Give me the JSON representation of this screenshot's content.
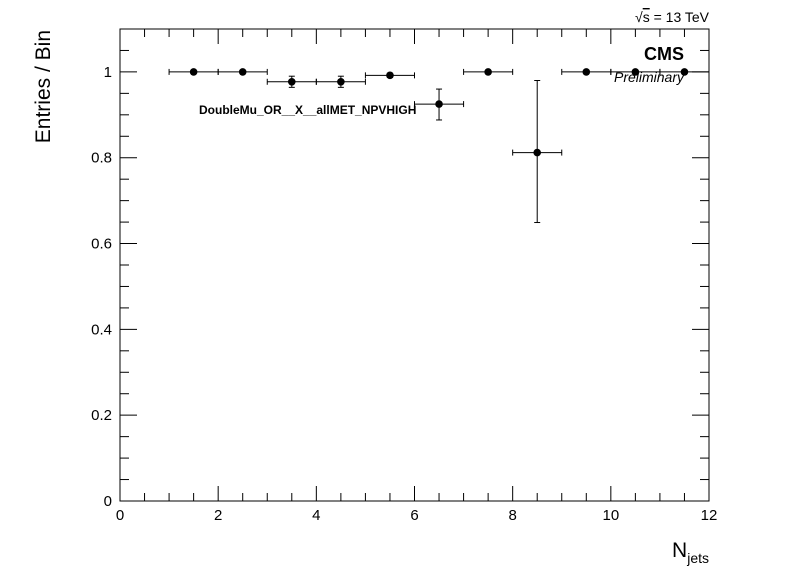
{
  "header": {
    "energy_label": "√s = 13 TeV",
    "energy_sqrt": "√",
    "energy_s": "s",
    "energy_rest": " = 13 TeV"
  },
  "labels": {
    "cms": "CMS",
    "preliminary": "Preliminary",
    "selection": "DoubleMu_OR__X__allMET_NPVHIGH"
  },
  "chart_data": {
    "type": "scatter",
    "title": "",
    "xlabel": "N_jets",
    "xlabel_main": "N",
    "xlabel_sub": "jets",
    "ylabel": "Entries / Bin",
    "xlim": [
      0,
      12
    ],
    "ylim": [
      0,
      1.1
    ],
    "x_ticks": [
      0,
      2,
      4,
      6,
      8,
      10,
      12
    ],
    "y_ticks": [
      0,
      0.2,
      0.4,
      0.6,
      0.8,
      1
    ],
    "x_tick_labels": [
      "0",
      "2",
      "4",
      "6",
      "8",
      "10",
      "12"
    ],
    "y_tick_labels": [
      "0",
      "0.2",
      "0.4",
      "0.6",
      "0.8",
      "1"
    ],
    "grid": false,
    "series": [
      {
        "points": [
          {
            "x": 1.5,
            "y": 1.0,
            "xerr": 0.5,
            "yerr_lo": 0.0,
            "yerr_hi": 0.0
          },
          {
            "x": 2.5,
            "y": 1.0,
            "xerr": 0.5,
            "yerr_lo": 0.0,
            "yerr_hi": 0.0
          },
          {
            "x": 3.5,
            "y": 0.977,
            "xerr": 0.5,
            "yerr_lo": 0.013,
            "yerr_hi": 0.013
          },
          {
            "x": 4.5,
            "y": 0.977,
            "xerr": 0.5,
            "yerr_lo": 0.013,
            "yerr_hi": 0.013
          },
          {
            "x": 5.5,
            "y": 0.992,
            "xerr": 0.5,
            "yerr_lo": 0.005,
            "yerr_hi": 0.005
          },
          {
            "x": 6.5,
            "y": 0.925,
            "xerr": 0.5,
            "yerr_lo": 0.037,
            "yerr_hi": 0.035
          },
          {
            "x": 7.5,
            "y": 1.0,
            "xerr": 0.5,
            "yerr_lo": 0.0,
            "yerr_hi": 0.0
          },
          {
            "x": 8.5,
            "y": 0.812,
            "xerr": 0.5,
            "yerr_lo": 0.163,
            "yerr_hi": 0.168
          },
          {
            "x": 9.5,
            "y": 1.0,
            "xerr": 0.5,
            "yerr_lo": 0.0,
            "yerr_hi": 0.0
          },
          {
            "x": 10.5,
            "y": 1.0,
            "xerr": 0.5,
            "yerr_lo": 0.0,
            "yerr_hi": 0.0
          },
          {
            "x": 11.5,
            "y": 1.0,
            "xerr": 0.5,
            "yerr_lo": 0.0,
            "yerr_hi": 0.0
          }
        ]
      }
    ]
  }
}
